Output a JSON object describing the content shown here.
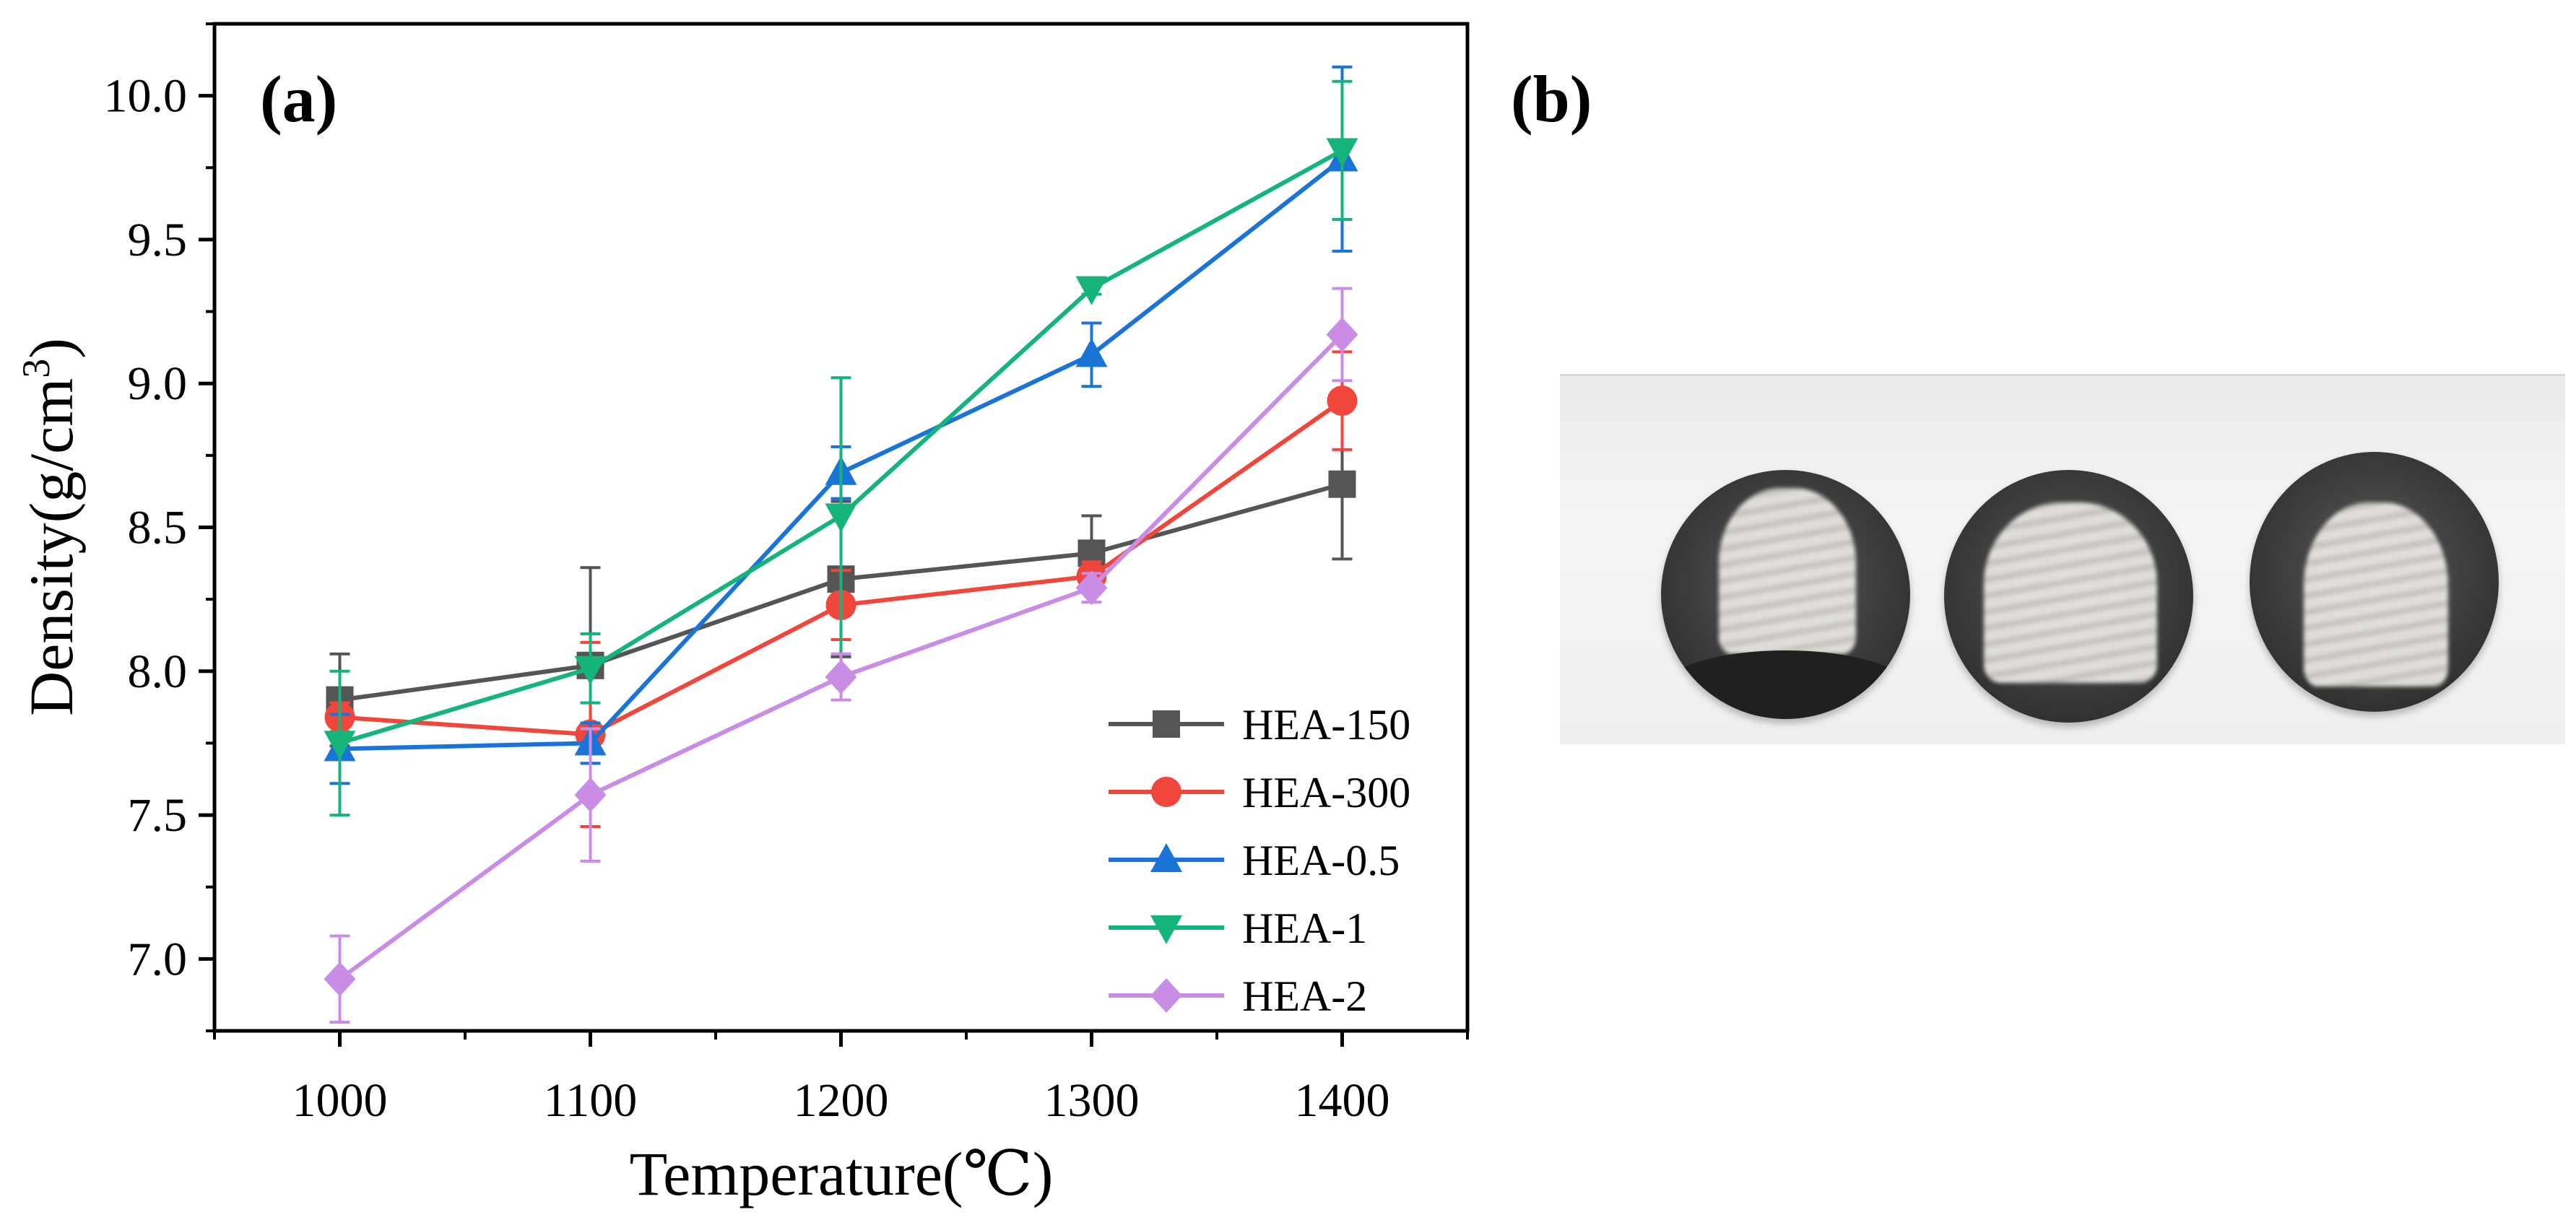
{
  "panels": {
    "a_label": "(a)",
    "b_label": "(b)"
  },
  "chart_data": {
    "type": "line",
    "title": "",
    "xlabel": "Temperature(℃)",
    "ylabel_main": "Density(g/cm",
    "ylabel_sup": "3",
    "ylabel_close": ")",
    "x": [
      1000,
      1100,
      1200,
      1300,
      1400
    ],
    "x_tick_labels": [
      "1000",
      "1100",
      "1200",
      "1300",
      "1400"
    ],
    "xlim": [
      950,
      1450
    ],
    "ylim": [
      6.75,
      10.25
    ],
    "y_ticks": [
      7.0,
      7.5,
      8.0,
      8.5,
      9.0,
      9.5,
      10.0
    ],
    "y_tick_labels": [
      "7.0",
      "7.5",
      "8.0",
      "8.5",
      "9.0",
      "9.5",
      "10.0"
    ],
    "grid": false,
    "legend_position": "bottom-right",
    "series": [
      {
        "name": "HEA-150",
        "color": "#555555",
        "marker": "square",
        "values": [
          7.9,
          8.02,
          8.32,
          8.41,
          8.65
        ],
        "errors": [
          0.16,
          0.34,
          0.27,
          0.13,
          0.26
        ]
      },
      {
        "name": "HEA-300",
        "color": "#f0463c",
        "marker": "circle",
        "values": [
          7.84,
          7.78,
          8.23,
          8.33,
          8.94
        ],
        "errors": [
          0.05,
          0.32,
          0.12,
          0.05,
          0.17
        ]
      },
      {
        "name": "HEA-0.5",
        "color": "#1a74d6",
        "marker": "triangle-up",
        "values": [
          7.73,
          7.75,
          8.69,
          9.1,
          9.78
        ],
        "errors": [
          0.12,
          0.07,
          0.09,
          0.11,
          0.32
        ]
      },
      {
        "name": "HEA-1",
        "color": "#15b47a",
        "marker": "triangle-down",
        "values": [
          7.75,
          8.01,
          8.54,
          9.33,
          9.81
        ],
        "errors": [
          0.25,
          0.12,
          0.48,
          0.02,
          0.24
        ]
      },
      {
        "name": "HEA-2",
        "color": "#c98de6",
        "marker": "diamond",
        "values": [
          6.93,
          7.57,
          7.98,
          8.29,
          9.17
        ],
        "errors": [
          0.15,
          0.23,
          0.08,
          0.05,
          0.16
        ]
      }
    ]
  },
  "photo": {
    "description_name": "sintered-samples-photo"
  }
}
